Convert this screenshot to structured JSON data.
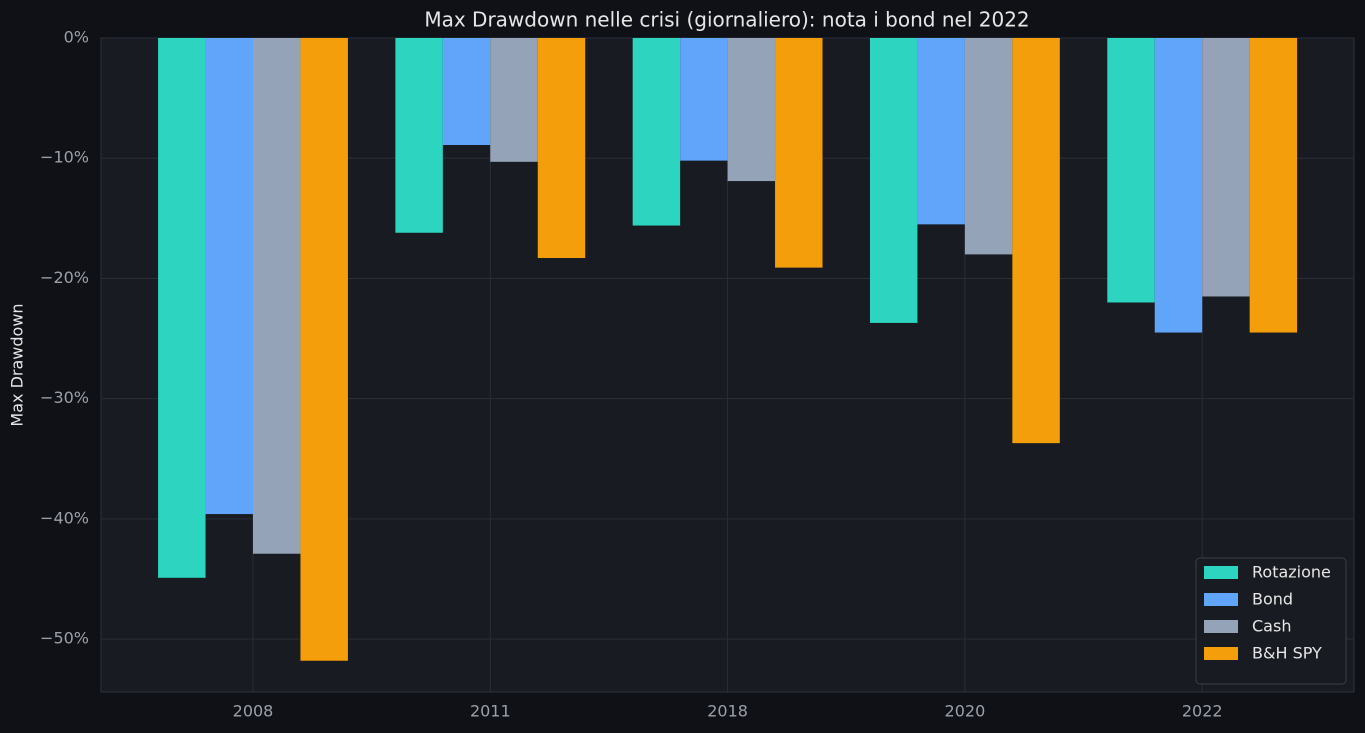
{
  "chart_data": {
    "type": "bar",
    "title": "Max Drawdown nelle crisi (giornaliero): nota i bond nel 2022",
    "y_label": "Max Drawdown",
    "categories": [
      "2008",
      "2011",
      "2018",
      "2020",
      "2022"
    ],
    "series": [
      {
        "name": "Rotazione",
        "color": "#2dd4bf",
        "values": [
          -44.9,
          -16.2,
          -15.6,
          -23.7,
          -22.0
        ]
      },
      {
        "name": "Bond",
        "color": "#60a5fa",
        "values": [
          -39.6,
          -8.9,
          -10.2,
          -15.5,
          -24.5
        ]
      },
      {
        "name": "Cash",
        "color": "#94a3b8",
        "values": [
          -42.9,
          -10.3,
          -11.9,
          -18.0,
          -21.5
        ]
      },
      {
        "name": "B&H SPY",
        "color": "#f59e0b",
        "values": [
          -51.8,
          -18.3,
          -19.1,
          -33.7,
          -24.5
        ]
      }
    ],
    "ylim": [
      -54.4,
      0
    ],
    "yticks": [
      {
        "value": 0,
        "label": "0%"
      },
      {
        "value": -10,
        "label": "−10%"
      },
      {
        "value": -20,
        "label": "−20%"
      },
      {
        "value": -30,
        "label": "−30%"
      },
      {
        "value": -40,
        "label": "−40%"
      },
      {
        "value": -50,
        "label": "−50%"
      }
    ],
    "grid": true,
    "legend": "lower right"
  }
}
